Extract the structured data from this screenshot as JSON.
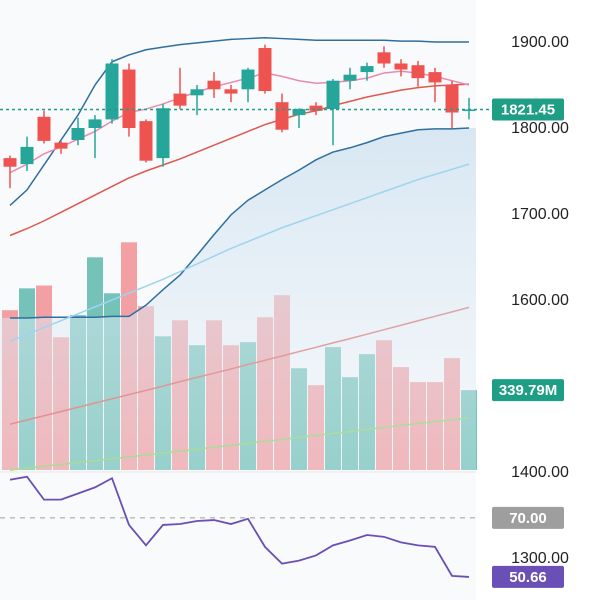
{
  "chart_data": [
    {
      "type": "candlestick",
      "open": [
        1765,
        1758,
        1813,
        1783,
        1786,
        1800,
        1810,
        1868,
        1808,
        1765,
        1840,
        1838,
        1855,
        1845,
        1845,
        1893,
        1830,
        1815,
        1826,
        1822,
        1855,
        1865,
        1888,
        1875,
        1873,
        1865,
        1850,
        1820
      ],
      "high": [
        1768,
        1790,
        1820,
        1785,
        1812,
        1815,
        1880,
        1875,
        1810,
        1828,
        1870,
        1850,
        1865,
        1850,
        1870,
        1897,
        1840,
        1823,
        1830,
        1857,
        1870,
        1876,
        1895,
        1880,
        1878,
        1870,
        1855,
        1835
      ],
      "low": [
        1730,
        1750,
        1782,
        1770,
        1780,
        1765,
        1805,
        1790,
        1760,
        1755,
        1822,
        1815,
        1835,
        1830,
        1830,
        1840,
        1795,
        1800,
        1815,
        1780,
        1845,
        1855,
        1870,
        1860,
        1848,
        1830,
        1800,
        1810
      ],
      "close": [
        1755,
        1778,
        1785,
        1776,
        1800,
        1810,
        1875,
        1800,
        1762,
        1823,
        1826,
        1845,
        1845,
        1840,
        1868,
        1843,
        1798,
        1822,
        1820,
        1855,
        1862,
        1872,
        1875,
        1868,
        1858,
        1853,
        1818,
        1821.45
      ],
      "up_color": "#26a69a",
      "down_color": "#ef5350",
      "overlays": [
        {
          "color": "#2f6f9f",
          "values": [
            1710,
            1728,
            1757,
            1786,
            1815,
            1850,
            1877,
            1885,
            1891,
            1894,
            1897,
            1899,
            1901,
            1903,
            1904,
            1905,
            1904,
            1903,
            1902,
            1902,
            1902,
            1902,
            1902,
            1901,
            1901,
            1900,
            1900,
            1900
          ]
        },
        {
          "color": "#2f6f9f",
          "values": [
            1579,
            1579,
            1580,
            1580,
            1580,
            1580,
            1581,
            1581,
            1594,
            1612,
            1629,
            1652,
            1676,
            1699,
            1716,
            1728,
            1740,
            1751,
            1763,
            1772,
            1777,
            1783,
            1790,
            1794,
            1798,
            1799,
            1799,
            1800
          ]
        },
        {
          "color": "#9fd4ef",
          "values": [
            1552,
            1560,
            1568,
            1576,
            1584,
            1592,
            1600,
            1608,
            1616,
            1624,
            1633,
            1642,
            1651,
            1660,
            1668,
            1676,
            1684,
            1691,
            1698,
            1705,
            1712,
            1719,
            1726,
            1733,
            1740,
            1746,
            1752,
            1758
          ]
        },
        {
          "color": "#e0574f",
          "values": [
            1675,
            1683,
            1692,
            1702,
            1712,
            1722,
            1732,
            1742,
            1750,
            1757,
            1764,
            1772,
            1780,
            1788,
            1796,
            1804,
            1810,
            1816,
            1820,
            1826,
            1831,
            1836,
            1840,
            1844,
            1847,
            1849,
            1850,
            1851
          ]
        },
        {
          "color": "#e98ab0",
          "values": [
            1748,
            1758,
            1770,
            1778,
            1787,
            1796,
            1808,
            1818,
            1822,
            1828,
            1835,
            1842,
            1848,
            1853,
            1858,
            1864,
            1860,
            1855,
            1852,
            1853,
            1855,
            1858,
            1864,
            1866,
            1864,
            1860,
            1855,
            1850
          ]
        }
      ],
      "last_price": 1821.45,
      "last_price_color": "#1e9e84",
      "ylim": [
        1251.16,
        1948.84
      ],
      "yticks": [
        {
          "value": 1300,
          "label": "1300.00"
        },
        {
          "value": 1400,
          "label": "1400.00"
        },
        {
          "value": 1600,
          "label": "1600.00"
        },
        {
          "value": 1700,
          "label": "1700.00"
        },
        {
          "value": 1800,
          "label": "1800.00"
        },
        {
          "value": 1900,
          "label": "1900.00"
        }
      ],
      "grid": false
    },
    {
      "type": "bar",
      "values": [
        680,
        773,
        785,
        565,
        659,
        905,
        752,
        969,
        697,
        569,
        637,
        531,
        637,
        531,
        544,
        650,
        744,
        433,
        361,
        523,
        395,
        493,
        552,
        438,
        374,
        374,
        476,
        339.79
      ],
      "value_labels": [
        null,
        null,
        null,
        null,
        null,
        null,
        null,
        null,
        null,
        null,
        null,
        null,
        null,
        null,
        null,
        null,
        null,
        null,
        null,
        null,
        null,
        null,
        null,
        null,
        null,
        null,
        null,
        "339.79M"
      ],
      "up_color": "#74c2b8",
      "down_color": "#f2a0a3",
      "label_color": "#1e9e84",
      "overlays": [
        {
          "color": "#e0574f",
          "values": [
            195,
            213,
            231,
            249,
            267,
            285,
            303,
            321,
            339,
            357,
            376,
            394,
            412,
            430,
            449,
            467,
            485,
            504,
            522,
            541,
            559,
            578,
            597,
            616,
            635,
            654,
            673,
            692
          ]
        },
        {
          "color": "#8fd16a",
          "values": [
            0,
            8,
            16,
            24,
            32,
            40,
            48,
            56,
            64,
            72,
            80,
            89,
            97,
            105,
            114,
            122,
            130,
            139,
            147,
            156,
            164,
            173,
            181,
            190,
            198,
            206,
            214,
            222
          ]
        }
      ],
      "ylim": [
        0,
        2000
      ]
    },
    {
      "type": "line",
      "values": [
        82.5,
        83.5,
        76,
        76,
        78,
        80,
        83,
        67.7,
        61,
        67.7,
        68,
        69,
        69.3,
        68,
        69.7,
        60.5,
        55,
        56,
        57.7,
        61,
        62.6,
        64.4,
        63.8,
        62,
        61,
        60.5,
        51,
        50.66
      ],
      "value_labels": [
        null,
        null,
        null,
        null,
        null,
        null,
        null,
        null,
        null,
        null,
        null,
        null,
        null,
        null,
        null,
        null,
        null,
        null,
        null,
        null,
        null,
        null,
        null,
        null,
        null,
        null,
        null,
        "50.66"
      ],
      "color": "#6a4fb6",
      "reference_line": {
        "value": 70,
        "label": "70.00",
        "color": "#9e9e9e"
      },
      "ylim": [
        43.1,
        85.7
      ]
    }
  ]
}
